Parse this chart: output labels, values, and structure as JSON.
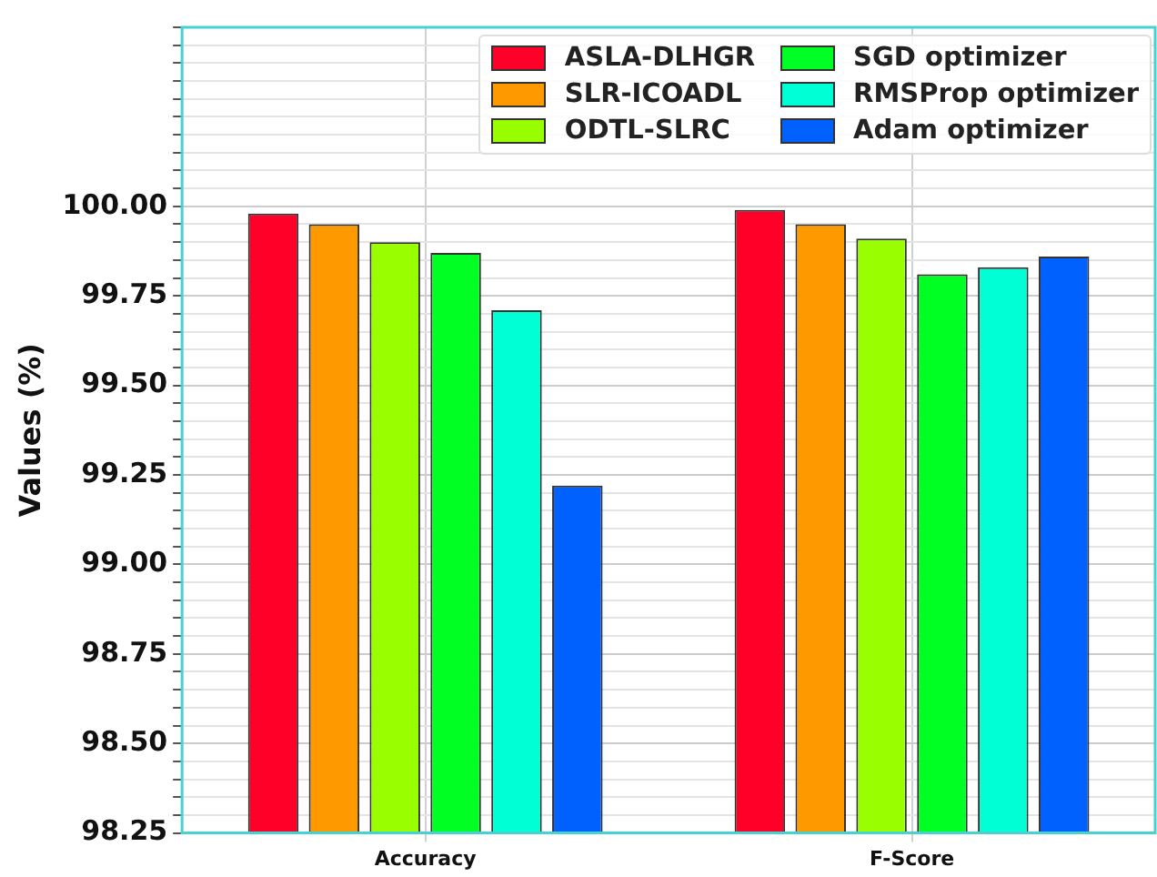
{
  "chart_data": {
    "type": "bar",
    "ylabel": "Values (%)",
    "categories": [
      "Accuracy",
      "F-Score"
    ],
    "series": [
      {
        "name": "ASLA-DLHGR",
        "color": "#ff0028",
        "values": [
          99.98,
          99.99
        ]
      },
      {
        "name": "SLR-ICOADL",
        "color": "#ff9900",
        "values": [
          99.95,
          99.95
        ]
      },
      {
        "name": "ODTL-SLRC",
        "color": "#99ff00",
        "values": [
          99.9,
          99.91
        ]
      },
      {
        "name": "SGD optimizer",
        "color": "#00ff22",
        "values": [
          99.87,
          99.81
        ]
      },
      {
        "name": "RMSProp optimizer",
        "color": "#00ffd5",
        "values": [
          99.71,
          99.83
        ]
      },
      {
        "name": "Adam optimizer",
        "color": "#0061ff",
        "values": [
          99.22,
          99.86
        ]
      }
    ],
    "ylim": [
      98.25,
      100.5
    ],
    "yticks": [
      "98.25",
      {
        "value": 98.3,
        "label": null
      },
      {
        "value": 98.35,
        "label": null
      },
      {
        "value": 98.4,
        "label": null
      },
      {
        "value": 98.45,
        "label": null
      },
      {
        "value": 98.5,
        "label": "98.50"
      },
      {
        "value": 98.55,
        "label": null
      },
      {
        "value": 98.6,
        "label": null
      },
      {
        "value": 98.65,
        "label": null
      },
      {
        "value": 98.7,
        "label": null
      },
      {
        "value": 98.75,
        "label": "98.75"
      },
      {
        "value": 98.8,
        "label": null
      },
      {
        "value": 98.85,
        "label": null
      },
      {
        "value": 98.9,
        "label": null
      },
      {
        "value": 98.95,
        "label": null
      },
      {
        "value": 99.0,
        "label": "99.00"
      },
      {
        "value": 99.05,
        "label": null
      },
      {
        "value": 99.1,
        "label": null
      },
      {
        "value": 99.15,
        "label": null
      },
      {
        "value": 99.2,
        "label": null
      },
      {
        "value": 99.25,
        "label": "99.25"
      },
      {
        "value": 99.3,
        "label": null
      },
      {
        "value": 99.35,
        "label": null
      },
      {
        "value": 99.4,
        "label": null
      },
      {
        "value": 99.45,
        "label": null
      },
      {
        "value": 99.5,
        "label": "99.50"
      },
      {
        "value": 99.55,
        "label": null
      },
      {
        "value": 99.6,
        "label": null
      },
      {
        "value": 99.65,
        "label": null
      },
      {
        "value": 99.7,
        "label": null
      },
      {
        "value": 99.75,
        "label": "99.75"
      },
      {
        "value": 99.8,
        "label": null
      },
      {
        "value": 99.85,
        "label": null
      },
      {
        "value": 99.9,
        "label": null
      },
      {
        "value": 99.95,
        "label": null
      },
      {
        "value": 100.0,
        "label": "100.00"
      },
      {
        "value": 100.05,
        "label": null
      },
      {
        "value": 100.1,
        "label": null
      },
      {
        "value": 100.15,
        "label": null
      },
      {
        "value": 100.2,
        "label": null
      },
      {
        "value": 100.25,
        "label": null
      },
      {
        "value": 100.3,
        "label": null
      },
      {
        "value": 100.35,
        "label": null
      },
      {
        "value": 100.4,
        "label": null
      },
      {
        "value": 100.45,
        "label": null
      },
      {
        "value": 100.5,
        "label": null
      }
    ],
    "grid": true,
    "legend": "top right"
  }
}
